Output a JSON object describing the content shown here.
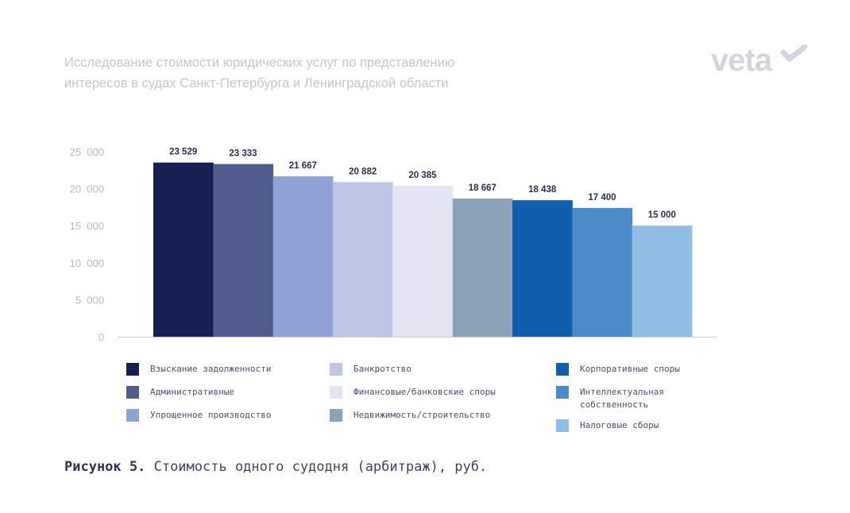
{
  "header": {
    "title_line1": "Исследование стоимости юридических услуг по представлению",
    "title_line2": "интересов в судах Санкт-Петербурга и Ленинградской области",
    "logo": "veta"
  },
  "chart_data": {
    "type": "bar",
    "title": "Стоимость одного судодня (арбитраж), руб.",
    "categories": [
      "Взыскание задолженности",
      "Административные",
      "Упрощенное производство",
      "Банкротство",
      "Финансовые/банковские споры",
      "Недвижимость/строительство",
      "Корпоративные споры",
      "Интеллектуальная собственность",
      "Налоговые сборы"
    ],
    "values": [
      23529,
      23333,
      21667,
      20882,
      20385,
      18667,
      18438,
      17400,
      15000
    ],
    "value_labels": [
      "23 529",
      "23 333",
      "21 667",
      "20 882",
      "20 385",
      "18 667",
      "18 438",
      "17 400",
      "15 000"
    ],
    "colors": [
      "#151f52",
      "#4f5d8a",
      "#8fa3d4",
      "#bcc6e6",
      "#e3e6f2",
      "#8ca3b7",
      "#115eac",
      "#4a8bca",
      "#90bde3"
    ],
    "yticks": [
      0,
      5000,
      10000,
      15000,
      20000,
      25000
    ],
    "ytick_labels": [
      "0",
      "5  000",
      "10  000",
      "15  000",
      "20  000",
      "25  000"
    ],
    "ylim": [
      0,
      25000
    ],
    "grid": false,
    "legend_position": "bottom"
  },
  "caption": {
    "prefix": "Рисунок 5.",
    "text": " Стоимость одного судодня (арбитраж), руб."
  }
}
